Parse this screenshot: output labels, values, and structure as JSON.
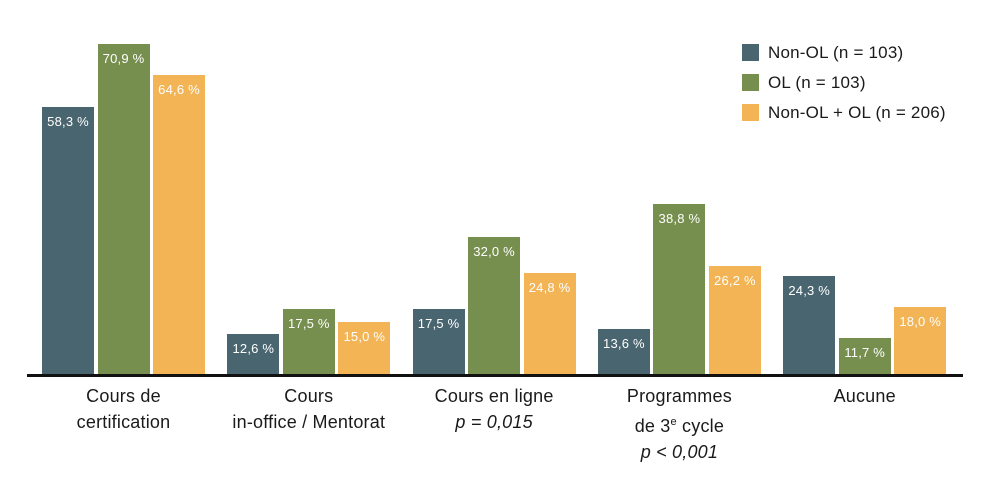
{
  "chart_data": {
    "type": "bar",
    "title": "",
    "categories": [
      {
        "lines": [
          "Cours de",
          "certification"
        ],
        "p_label": ""
      },
      {
        "lines": [
          "Cours",
          "in-office / Mentorat"
        ],
        "p_label": ""
      },
      {
        "lines": [
          "Cours en ligne"
        ],
        "p_label": "p = 0,015"
      },
      {
        "lines": [
          "Programmes",
          "de 3ᵉ cycle"
        ],
        "p_label": "p < 0,001"
      },
      {
        "lines": [
          "Aucune"
        ],
        "p_label": ""
      }
    ],
    "series": [
      {
        "name": "Non-OL (n = 103)",
        "color": "#49656f",
        "values": [
          58.3,
          12.6,
          17.5,
          13.6,
          24.3
        ]
      },
      {
        "name": "OL (n = 103)",
        "color": "#778f4e",
        "values": [
          70.9,
          17.5,
          32.0,
          38.8,
          11.7
        ]
      },
      {
        "name": "Non-OL + OL (n = 206)",
        "color": "#f2b455",
        "values": [
          64.6,
          15.0,
          24.8,
          26.2,
          18.0
        ]
      }
    ],
    "value_label_format": "{value} %",
    "decimal_separator": ",",
    "ylim": [
      4.5,
      80
    ],
    "grid": false,
    "legend_position": "top-right",
    "axis_color": "#111111",
    "label_color": "#1a1a1a",
    "value_label_color": "#ffffff"
  }
}
